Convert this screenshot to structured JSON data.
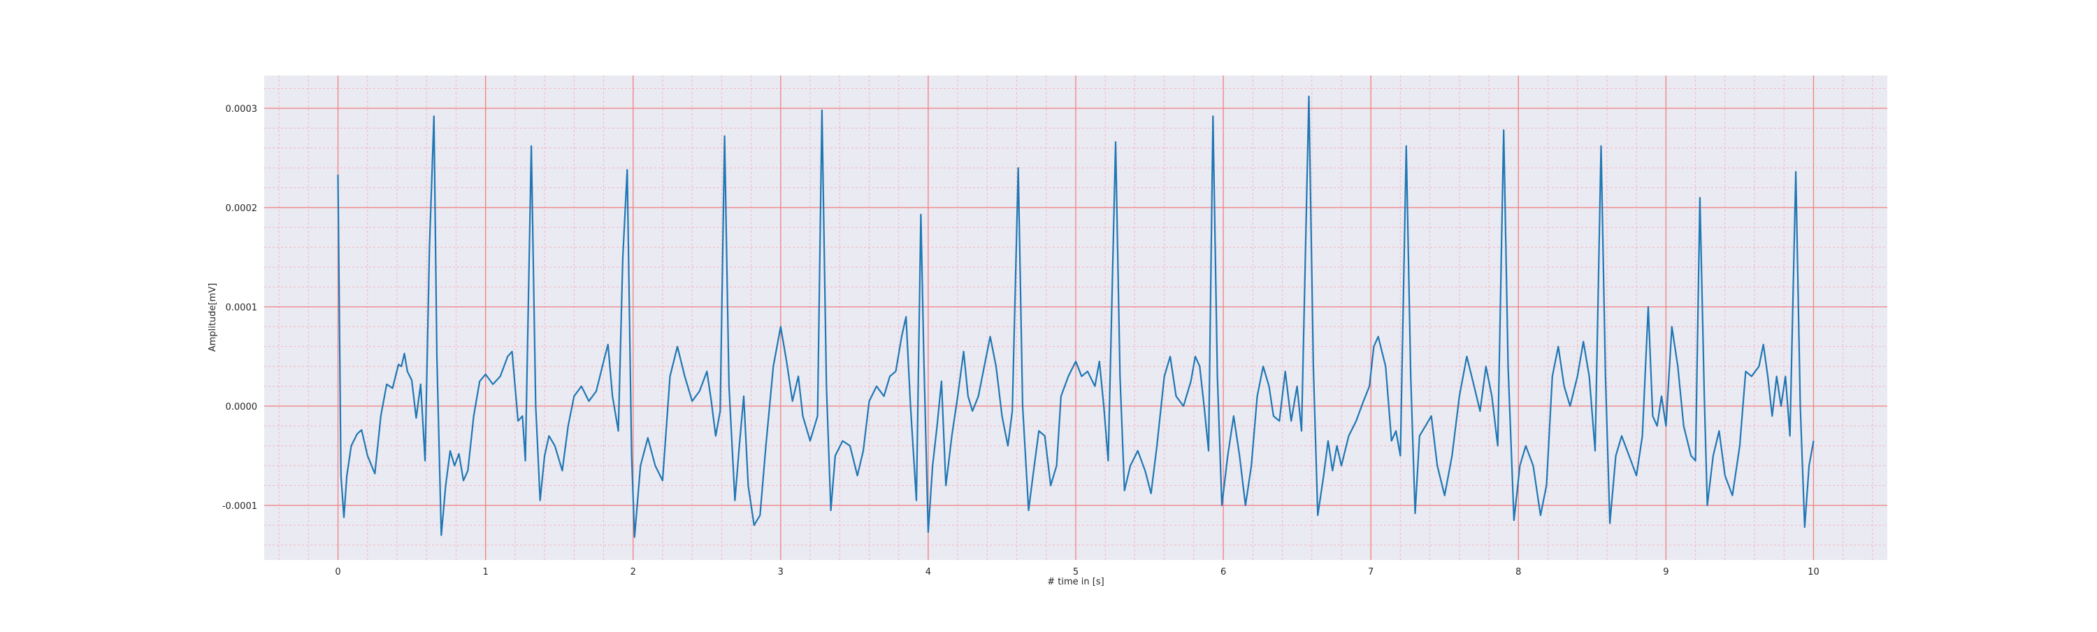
{
  "chart_data": {
    "type": "line",
    "title": "",
    "xlabel": "# time in [s]",
    "ylabel": "Amplitude[mV]",
    "xlim": [
      -0.5,
      10.5
    ],
    "ylim": [
      -0.000155,
      0.000333
    ],
    "x_ticks": [
      0,
      1,
      2,
      3,
      4,
      5,
      6,
      7,
      8,
      9,
      10
    ],
    "x_tick_labels": [
      "0",
      "1",
      "2",
      "3",
      "4",
      "5",
      "6",
      "7",
      "8",
      "9",
      "10"
    ],
    "y_ticks": [
      -0.0001,
      0.0,
      0.0001,
      0.0002,
      0.0003
    ],
    "y_tick_labels": [
      "-0.0001",
      "0.0000",
      "0.0001",
      "0.0002",
      "0.0003"
    ],
    "grid": true,
    "major_grid_x": 1,
    "minor_grid_x": 0.2,
    "major_grid_y": 0.0001,
    "minor_grid_y": 2e-05,
    "colors": {
      "background": "#eaeaf2",
      "line": "#1f77b4",
      "major_grid": "#f08080",
      "minor_grid": "#f5b5c0"
    },
    "series": [
      {
        "name": "",
        "points": [
          [
            0.0,
            0.000233
          ],
          [
            0.02,
            -7e-05
          ],
          [
            0.04,
            -0.000112
          ],
          [
            0.06,
            -7e-05
          ],
          [
            0.09,
            -4e-05
          ],
          [
            0.13,
            -2.8e-05
          ],
          [
            0.16,
            -2.4e-05
          ],
          [
            0.2,
            -5e-05
          ],
          [
            0.25,
            -6.8e-05
          ],
          [
            0.29,
            -1e-05
          ],
          [
            0.33,
            2.2e-05
          ],
          [
            0.37,
            1.8e-05
          ],
          [
            0.41,
            4.2e-05
          ],
          [
            0.43,
            4e-05
          ],
          [
            0.45,
            5.3e-05
          ],
          [
            0.47,
            3.5e-05
          ],
          [
            0.5,
            2.6e-05
          ],
          [
            0.53,
            -1.2e-05
          ],
          [
            0.56,
            2.2e-05
          ],
          [
            0.59,
            -5.5e-05
          ],
          [
            0.62,
            0.00016
          ],
          [
            0.65,
            0.000292
          ],
          [
            0.67,
            5e-05
          ],
          [
            0.7,
            -0.00013
          ],
          [
            0.73,
            -8e-05
          ],
          [
            0.76,
            -4.5e-05
          ],
          [
            0.79,
            -6e-05
          ],
          [
            0.82,
            -4.8e-05
          ],
          [
            0.85,
            -7.5e-05
          ],
          [
            0.88,
            -6.5e-05
          ],
          [
            0.92,
            -1e-05
          ],
          [
            0.96,
            2.5e-05
          ],
          [
            1.0,
            3.2e-05
          ],
          [
            1.05,
            2.2e-05
          ],
          [
            1.1,
            3e-05
          ],
          [
            1.15,
            5e-05
          ],
          [
            1.18,
            5.5e-05
          ],
          [
            1.22,
            -1.5e-05
          ],
          [
            1.25,
            -1e-05
          ],
          [
            1.27,
            -5.5e-05
          ],
          [
            1.31,
            0.000262
          ],
          [
            1.34,
            0.0
          ],
          [
            1.37,
            -9.5e-05
          ],
          [
            1.4,
            -5e-05
          ],
          [
            1.43,
            -3e-05
          ],
          [
            1.47,
            -4e-05
          ],
          [
            1.52,
            -6.5e-05
          ],
          [
            1.56,
            -2e-05
          ],
          [
            1.6,
            1e-05
          ],
          [
            1.65,
            2e-05
          ],
          [
            1.7,
            5e-06
          ],
          [
            1.75,
            1.5e-05
          ],
          [
            1.8,
            4.5e-05
          ],
          [
            1.83,
            6.2e-05
          ],
          [
            1.86,
            1e-05
          ],
          [
            1.9,
            -2.5e-05
          ],
          [
            1.93,
            0.00015
          ],
          [
            1.96,
            0.000238
          ],
          [
            1.99,
            -5e-05
          ],
          [
            2.01,
            -0.000132
          ],
          [
            2.05,
            -6e-05
          ],
          [
            2.1,
            -3.2e-05
          ],
          [
            2.15,
            -6e-05
          ],
          [
            2.2,
            -7.5e-05
          ],
          [
            2.25,
            3e-05
          ],
          [
            2.3,
            6e-05
          ],
          [
            2.35,
            3e-05
          ],
          [
            2.4,
            5e-06
          ],
          [
            2.45,
            1.5e-05
          ],
          [
            2.5,
            3.5e-05
          ],
          [
            2.53,
            5e-06
          ],
          [
            2.56,
            -3e-05
          ],
          [
            2.59,
            -5e-06
          ],
          [
            2.62,
            0.000272
          ],
          [
            2.65,
            2e-05
          ],
          [
            2.69,
            -9.5e-05
          ],
          [
            2.72,
            -4e-05
          ],
          [
            2.75,
            1e-05
          ],
          [
            2.78,
            -8e-05
          ],
          [
            2.82,
            -0.00012
          ],
          [
            2.86,
            -0.00011
          ],
          [
            2.9,
            -4e-05
          ],
          [
            2.95,
            4e-05
          ],
          [
            3.0,
            8e-05
          ],
          [
            3.04,
            4.5e-05
          ],
          [
            3.08,
            5e-06
          ],
          [
            3.12,
            3e-05
          ],
          [
            3.15,
            -1e-05
          ],
          [
            3.2,
            -3.5e-05
          ],
          [
            3.25,
            -1e-05
          ],
          [
            3.28,
            0.000298
          ],
          [
            3.31,
            2e-05
          ],
          [
            3.34,
            -0.000105
          ],
          [
            3.37,
            -5e-05
          ],
          [
            3.42,
            -3.5e-05
          ],
          [
            3.47,
            -4e-05
          ],
          [
            3.52,
            -7e-05
          ],
          [
            3.56,
            -4.5e-05
          ],
          [
            3.6,
            5e-06
          ],
          [
            3.65,
            2e-05
          ],
          [
            3.7,
            1e-05
          ],
          [
            3.74,
            3e-05
          ],
          [
            3.78,
            3.5e-05
          ],
          [
            3.82,
            7e-05
          ],
          [
            3.85,
            9e-05
          ],
          [
            3.88,
            0.0
          ],
          [
            3.92,
            -9.5e-05
          ],
          [
            3.95,
            0.000193
          ],
          [
            3.97,
            5e-05
          ],
          [
            4.0,
            -0.000127
          ],
          [
            4.03,
            -6e-05
          ],
          [
            4.06,
            -2e-05
          ],
          [
            4.09,
            2.5e-05
          ],
          [
            4.12,
            -8e-05
          ],
          [
            4.16,
            -3e-05
          ],
          [
            4.2,
            1e-05
          ],
          [
            4.24,
            5.5e-05
          ],
          [
            4.27,
            1e-05
          ],
          [
            4.3,
            -5e-06
          ],
          [
            4.34,
            1e-05
          ],
          [
            4.38,
            4e-05
          ],
          [
            4.42,
            7e-05
          ],
          [
            4.46,
            4e-05
          ],
          [
            4.5,
            -1e-05
          ],
          [
            4.54,
            -4e-05
          ],
          [
            4.57,
            -5e-06
          ],
          [
            4.61,
            0.00024
          ],
          [
            4.64,
            0.0
          ],
          [
            4.68,
            -0.000105
          ],
          [
            4.71,
            -7e-05
          ],
          [
            4.75,
            -2.5e-05
          ],
          [
            4.79,
            -3e-05
          ],
          [
            4.83,
            -8e-05
          ],
          [
            4.87,
            -6e-05
          ],
          [
            4.9,
            1e-05
          ],
          [
            4.95,
            3e-05
          ],
          [
            5.0,
            4.5e-05
          ],
          [
            5.04,
            3e-05
          ],
          [
            5.08,
            3.5e-05
          ],
          [
            5.13,
            2e-05
          ],
          [
            5.16,
            4.5e-05
          ],
          [
            5.19,
            0.0
          ],
          [
            5.22,
            -5.5e-05
          ],
          [
            5.27,
            0.000266
          ],
          [
            5.3,
            3e-05
          ],
          [
            5.33,
            -8.5e-05
          ],
          [
            5.37,
            -6e-05
          ],
          [
            5.42,
            -4.5e-05
          ],
          [
            5.47,
            -6.5e-05
          ],
          [
            5.51,
            -8.8e-05
          ],
          [
            5.55,
            -4e-05
          ],
          [
            5.6,
            3e-05
          ],
          [
            5.64,
            5e-05
          ],
          [
            5.68,
            1e-05
          ],
          [
            5.73,
            0.0
          ],
          [
            5.78,
            2.5e-05
          ],
          [
            5.81,
            5e-05
          ],
          [
            5.84,
            4e-05
          ],
          [
            5.87,
            0.0
          ],
          [
            5.9,
            -4.5e-05
          ],
          [
            5.93,
            0.000292
          ],
          [
            5.96,
            3e-05
          ],
          [
            5.99,
            -0.0001
          ],
          [
            6.03,
            -5e-05
          ],
          [
            6.07,
            -1e-05
          ],
          [
            6.11,
            -5e-05
          ],
          [
            6.15,
            -0.0001
          ],
          [
            6.19,
            -6e-05
          ],
          [
            6.23,
            1e-05
          ],
          [
            6.27,
            4e-05
          ],
          [
            6.31,
            2e-05
          ],
          [
            6.34,
            -1e-05
          ],
          [
            6.38,
            -1.5e-05
          ],
          [
            6.42,
            3.5e-05
          ],
          [
            6.46,
            -1.5e-05
          ],
          [
            6.5,
            2e-05
          ],
          [
            6.53,
            -2.5e-05
          ],
          [
            6.58,
            0.000312
          ],
          [
            6.61,
            4e-05
          ],
          [
            6.64,
            -0.00011
          ],
          [
            6.68,
            -7e-05
          ],
          [
            6.71,
            -3.5e-05
          ],
          [
            6.74,
            -6.5e-05
          ],
          [
            6.77,
            -4e-05
          ],
          [
            6.8,
            -6e-05
          ],
          [
            6.85,
            -3e-05
          ],
          [
            6.9,
            -1.5e-05
          ],
          [
            6.95,
            5e-06
          ],
          [
            6.99,
            2e-05
          ],
          [
            7.02,
            6e-05
          ],
          [
            7.05,
            7e-05
          ],
          [
            7.1,
            4e-05
          ],
          [
            7.14,
            -3.5e-05
          ],
          [
            7.17,
            -2.5e-05
          ],
          [
            7.2,
            -5e-05
          ],
          [
            7.24,
            0.000262
          ],
          [
            7.27,
            3e-05
          ],
          [
            7.3,
            -0.000108
          ],
          [
            7.33,
            -3e-05
          ],
          [
            7.37,
            -2e-05
          ],
          [
            7.41,
            -1e-05
          ],
          [
            7.45,
            -6e-05
          ],
          [
            7.5,
            -9e-05
          ],
          [
            7.55,
            -5e-05
          ],
          [
            7.6,
            1e-05
          ],
          [
            7.65,
            5e-05
          ],
          [
            7.7,
            2e-05
          ],
          [
            7.74,
            -5e-06
          ],
          [
            7.78,
            4e-05
          ],
          [
            7.82,
            1e-05
          ],
          [
            7.86,
            -4e-05
          ],
          [
            7.9,
            0.000278
          ],
          [
            7.93,
            4e-05
          ],
          [
            7.97,
            -0.000115
          ],
          [
            8.01,
            -6e-05
          ],
          [
            8.05,
            -4e-05
          ],
          [
            8.1,
            -6e-05
          ],
          [
            8.15,
            -0.00011
          ],
          [
            8.19,
            -8e-05
          ],
          [
            8.23,
            3e-05
          ],
          [
            8.27,
            6e-05
          ],
          [
            8.31,
            2e-05
          ],
          [
            8.35,
            0.0
          ],
          [
            8.4,
            3e-05
          ],
          [
            8.44,
            6.5e-05
          ],
          [
            8.48,
            3e-05
          ],
          [
            8.52,
            -4.5e-05
          ],
          [
            8.56,
            0.000262
          ],
          [
            8.59,
            3e-05
          ],
          [
            8.62,
            -0.000118
          ],
          [
            8.66,
            -5e-05
          ],
          [
            8.7,
            -3e-05
          ],
          [
            8.75,
            -5e-05
          ],
          [
            8.8,
            -7e-05
          ],
          [
            8.84,
            -3e-05
          ],
          [
            8.88,
            0.0001
          ],
          [
            8.91,
            -1e-05
          ],
          [
            8.94,
            -2e-05
          ],
          [
            8.97,
            1e-05
          ],
          [
            9.0,
            -2e-05
          ],
          [
            9.04,
            8e-05
          ],
          [
            9.08,
            4e-05
          ],
          [
            9.12,
            -2e-05
          ],
          [
            9.17,
            -5e-05
          ],
          [
            9.2,
            -5.5e-05
          ],
          [
            9.23,
            0.00021
          ],
          [
            9.26,
            1e-05
          ],
          [
            9.28,
            -0.0001
          ],
          [
            9.32,
            -5e-05
          ],
          [
            9.36,
            -2.5e-05
          ],
          [
            9.4,
            -7e-05
          ],
          [
            9.45,
            -9e-05
          ],
          [
            9.5,
            -4e-05
          ],
          [
            9.54,
            3.5e-05
          ],
          [
            9.58,
            3e-05
          ],
          [
            9.63,
            4e-05
          ],
          [
            9.66,
            6.2e-05
          ],
          [
            9.69,
            3e-05
          ],
          [
            9.72,
            -1e-05
          ],
          [
            9.75,
            3e-05
          ],
          [
            9.78,
            0.0
          ],
          [
            9.81,
            3e-05
          ],
          [
            9.84,
            -3e-05
          ],
          [
            9.88,
            0.000236
          ],
          [
            9.91,
            0.0
          ],
          [
            9.94,
            -0.000122
          ],
          [
            9.97,
            -6e-05
          ],
          [
            10.0,
            -3.5e-05
          ]
        ]
      }
    ]
  }
}
